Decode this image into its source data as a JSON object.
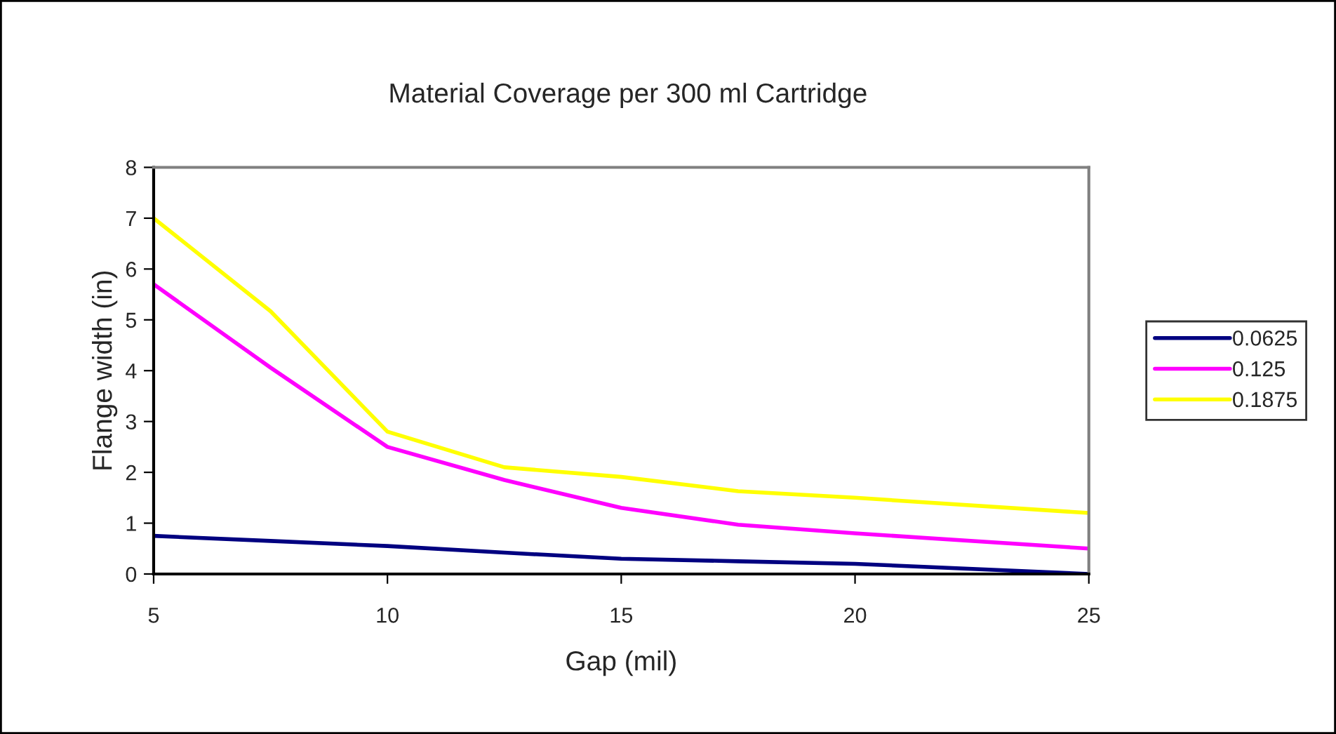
{
  "chart_data": {
    "type": "line",
    "title": "Material Coverage per 300 ml Cartridge",
    "xlabel": "Gap (mil)",
    "ylabel": "Flange width (in)",
    "xlim": [
      5,
      25
    ],
    "xticks": [
      5,
      10,
      15,
      20,
      25
    ],
    "ylim": [
      0,
      8
    ],
    "yticks": [
      0,
      1,
      2,
      3,
      4,
      5,
      6,
      7,
      8
    ],
    "grid": false,
    "legend": "right",
    "marker": "none",
    "line_style": "solid",
    "x": [
      5,
      7.5,
      10,
      12.5,
      15,
      17.5,
      20,
      25
    ],
    "series": [
      {
        "name": "0.0625",
        "color": "#000080",
        "values": [
          0.75,
          0.65,
          0.55,
          0.42,
          0.3,
          0.25,
          0.2,
          0
        ]
      },
      {
        "name": "0.125",
        "color": "#ff00ff",
        "values": [
          5.7,
          4.06,
          2.5,
          1.85,
          1.3,
          0.97,
          0.8,
          0.5
        ]
      },
      {
        "name": "0.1875",
        "color": "#ffff00",
        "values": [
          7,
          5.17,
          2.8,
          2.1,
          1.91,
          1.63,
          1.5,
          1.2
        ]
      }
    ]
  }
}
